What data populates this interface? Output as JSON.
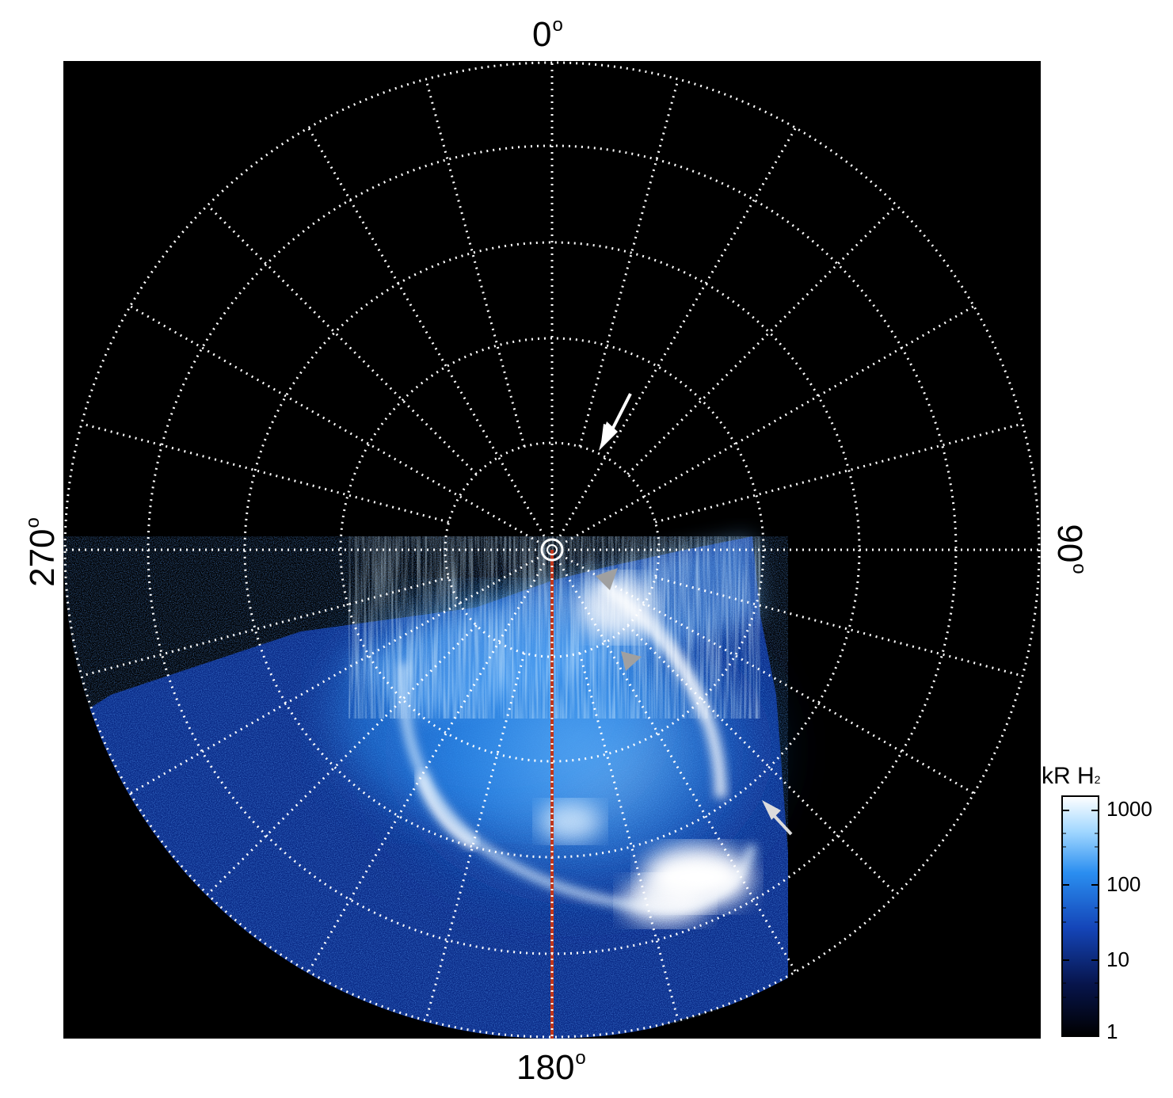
{
  "axis_labels": {
    "top": "0",
    "right": "90",
    "bottom": "180",
    "left": "270",
    "degree_symbol": "o"
  },
  "colorbar": {
    "unit": "kR H",
    "unit_subscript": "2",
    "ticks": [
      "1000",
      "100",
      "10",
      "1"
    ],
    "colors": [
      "#000000",
      "#07154d",
      "#1445b8",
      "#2a8ef0",
      "#9fd6ff",
      "#ffffff"
    ]
  },
  "overlay": {
    "grid_color": "#ffffff",
    "meridian_color": "#c0361a",
    "white_arrow_color": "#ffffff",
    "grey_arrow_color": "#a0a0a0"
  }
}
